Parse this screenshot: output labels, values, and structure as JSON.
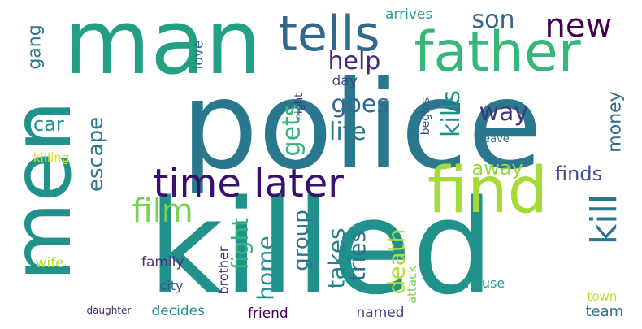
{
  "words": [
    {
      "text": "police",
      "color": "#2a788e",
      "rot": 0
    },
    {
      "text": "killed",
      "color": "#21918c",
      "rot": 0
    },
    {
      "text": "man",
      "color": "#23a083",
      "rot": 0
    },
    {
      "text": "men",
      "color": "#21918c",
      "rot": -90
    },
    {
      "text": "father",
      "color": "#35b779",
      "rot": 0
    },
    {
      "text": "find",
      "color": "#a5db36",
      "rot": 0
    },
    {
      "text": "tells",
      "color": "#31688e",
      "rot": 0
    },
    {
      "text": "new",
      "color": "#440154",
      "rot": 0
    },
    {
      "text": "time later",
      "color": "#3b0f70",
      "rot": 0
    },
    {
      "text": "kill",
      "color": "#2a788e",
      "rot": -90
    },
    {
      "text": "film",
      "color": "#7ad151",
      "rot": 0
    },
    {
      "text": "son",
      "color": "#31688e",
      "rot": 0
    },
    {
      "text": "help",
      "color": "#482878",
      "rot": 0
    },
    {
      "text": "goes",
      "color": "#31688e",
      "rot": 0
    },
    {
      "text": "way",
      "color": "#46327e",
      "rot": 0
    },
    {
      "text": "life",
      "color": "#2a788e",
      "rot": 0
    },
    {
      "text": "gets",
      "color": "#35b779",
      "rot": -90
    },
    {
      "text": "kills",
      "color": "#21918c",
      "rot": -90
    },
    {
      "text": "escape",
      "color": "#2a788e",
      "rot": -90
    },
    {
      "text": "car",
      "color": "#21918c",
      "rot": 0
    },
    {
      "text": "gang",
      "color": "#2a788e",
      "rot": -90
    },
    {
      "text": "money",
      "color": "#31688e",
      "rot": -90
    },
    {
      "text": "finds",
      "color": "#3e4a89",
      "rot": 0
    },
    {
      "text": "away",
      "color": "#95d840",
      "rot": 0
    },
    {
      "text": "fight",
      "color": "#35b779",
      "rot": -90
    },
    {
      "text": "home",
      "color": "#21918c",
      "rot": -90
    },
    {
      "text": "group",
      "color": "#2a788e",
      "rot": -90
    },
    {
      "text": "takes",
      "color": "#26828e",
      "rot": -90
    },
    {
      "text": "tries",
      "color": "#2c728e",
      "rot": -90
    },
    {
      "text": "death",
      "color": "#b5de2b",
      "rot": -90
    },
    {
      "text": "love",
      "color": "#31688e",
      "rot": -90
    },
    {
      "text": "arrives",
      "color": "#1f9e89",
      "rot": 0
    },
    {
      "text": "day",
      "color": "#3e4a89",
      "rot": 0
    },
    {
      "text": "night",
      "color": "#482878",
      "rot": -90
    },
    {
      "text": "begins",
      "color": "#3b528b",
      "rot": -90
    },
    {
      "text": "killing",
      "color": "#d8e219",
      "rot": 0
    },
    {
      "text": "leave",
      "color": "#2c728e",
      "rot": 0
    },
    {
      "text": "family",
      "color": "#46327e",
      "rot": 0
    },
    {
      "text": "wife",
      "color": "#b5de2b",
      "rot": 0
    },
    {
      "text": "city",
      "color": "#3b528b",
      "rot": 0
    },
    {
      "text": "brother",
      "color": "#482878",
      "rot": -90
    },
    {
      "text": "attack",
      "color": "#7ad151",
      "rot": -90
    },
    {
      "text": "house",
      "color": "#1f9e89",
      "rot": 0
    },
    {
      "text": "town",
      "color": "#bddf26",
      "rot": 0
    },
    {
      "text": "team",
      "color": "#2c728e",
      "rot": 0
    },
    {
      "text": "decides",
      "color": "#21918c",
      "rot": 0
    },
    {
      "text": "friend",
      "color": "#440154",
      "rot": 0
    },
    {
      "text": "named",
      "color": "#3e4a89",
      "rot": 0
    },
    {
      "text": "daughter",
      "color": "#482878",
      "rot": 0
    }
  ]
}
